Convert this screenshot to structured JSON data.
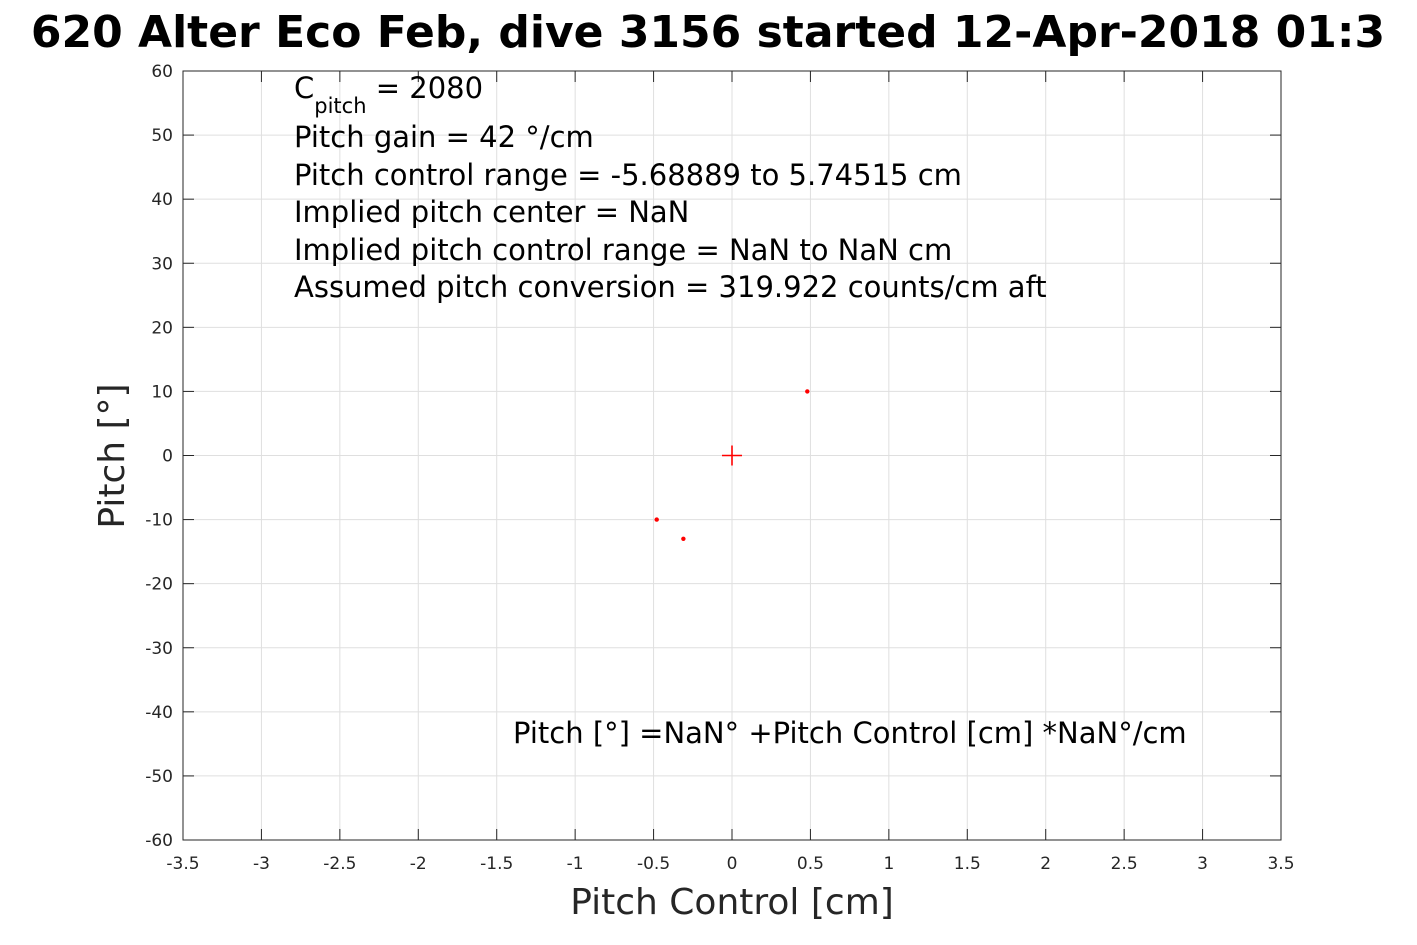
{
  "chart_data": {
    "type": "scatter",
    "title": "620 Alter Eco Feb, dive 3156 started 12-Apr-2018 01:3",
    "xlabel": "Pitch Control [cm]",
    "ylabel": "Pitch [°]",
    "xlim": [
      -3.5,
      3.5
    ],
    "ylim": [
      -60,
      60
    ],
    "x_ticks": [
      -3.5,
      -3,
      -2.5,
      -2,
      -1.5,
      -1,
      -0.5,
      0,
      0.5,
      1,
      1.5,
      2,
      2.5,
      3,
      3.5
    ],
    "x_tick_labels": [
      "-3.5",
      "-3",
      "-2.5",
      "-2",
      "-1.5",
      "-1",
      "-0.5",
      "0",
      "0.5",
      "1",
      "1.5",
      "2",
      "2.5",
      "3",
      "3.5"
    ],
    "y_ticks": [
      -60,
      -50,
      -40,
      -30,
      -20,
      -10,
      0,
      10,
      20,
      30,
      40,
      50,
      60
    ],
    "y_tick_labels": [
      "-60",
      "-50",
      "-40",
      "-30",
      "-20",
      "-10",
      "0",
      "10",
      "20",
      "30",
      "40",
      "50",
      "60"
    ],
    "grid": true,
    "series": [
      {
        "marker": "dot",
        "color": "#ff0000",
        "points": [
          {
            "x": -0.48,
            "y": -10
          },
          {
            "x": -0.31,
            "y": -13
          },
          {
            "x": 0.48,
            "y": 10
          }
        ]
      },
      {
        "marker": "plus",
        "color": "#ff0000",
        "points": [
          {
            "x": 0,
            "y": 0
          }
        ]
      }
    ],
    "annotations": {
      "c_pitch": {
        "main": "C",
        "sub": "pitch",
        "rest": " = 2080"
      },
      "lines": [
        "Pitch gain = 42 °/cm",
        "Pitch control range = -5.68889 to 5.74515 cm",
        "Implied pitch center = NaN",
        "Implied pitch control range = NaN to NaN cm",
        "Assumed pitch conversion = 319.922 counts/cm aft"
      ],
      "fit_equation": "Pitch [°] =NaN° +Pitch Control [cm] *NaN°/cm"
    }
  }
}
